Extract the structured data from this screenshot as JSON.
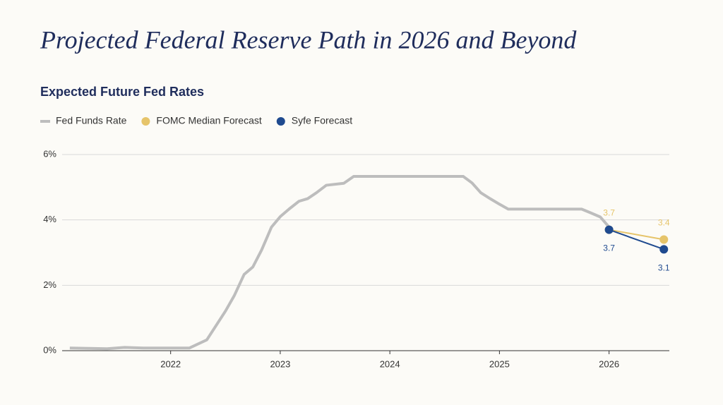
{
  "chart_data": {
    "type": "line",
    "title": "Projected Federal Reserve Path in 2026 and Beyond",
    "subtitle": "Expected Future Fed Rates",
    "xlim": [
      2021.01,
      2026.55
    ],
    "xticks": [
      2022,
      2023,
      2024,
      2025,
      2026
    ],
    "ylim": [
      0,
      6
    ],
    "yticks": [
      {
        "value": 0,
        "label": "0%"
      },
      {
        "value": 2,
        "label": "2%"
      },
      {
        "value": 4,
        "label": "4%"
      },
      {
        "value": 6,
        "label": "6%"
      }
    ],
    "grid": true,
    "series": [
      {
        "name": "Fed Funds Rate",
        "color": "#bdbdbd",
        "x": [
          2021.08,
          2021.25,
          2021.42,
          2021.58,
          2021.75,
          2021.92,
          2022.17,
          2022.33,
          2022.5,
          2022.58,
          2022.67,
          2022.75,
          2022.83,
          2022.92,
          2023.0,
          2023.08,
          2023.17,
          2023.25,
          2023.33,
          2023.42,
          2023.58,
          2023.67,
          2024.67,
          2024.75,
          2024.83,
          2024.92,
          2025.0,
          2025.08,
          2025.75,
          2025.83,
          2025.92,
          2026.0
        ],
        "values": [
          0.08,
          0.07,
          0.06,
          0.1,
          0.08,
          0.08,
          0.08,
          0.33,
          1.21,
          1.68,
          2.33,
          2.56,
          3.08,
          3.78,
          4.1,
          4.33,
          4.57,
          4.65,
          4.83,
          5.06,
          5.12,
          5.33,
          5.33,
          5.13,
          4.83,
          4.64,
          4.48,
          4.33,
          4.33,
          4.22,
          4.09,
          3.78
        ]
      },
      {
        "name": "FOMC Median Forecast",
        "color": "#e6c46a",
        "x": [
          2026.0,
          2026.5
        ],
        "values": [
          3.7,
          3.4
        ],
        "labels_side": "above"
      },
      {
        "name": "Syfe Forecast",
        "color": "#1f4a8f",
        "x": [
          2026.0,
          2026.5
        ],
        "values": [
          3.7,
          3.1
        ],
        "labels_side": "below"
      }
    ]
  }
}
